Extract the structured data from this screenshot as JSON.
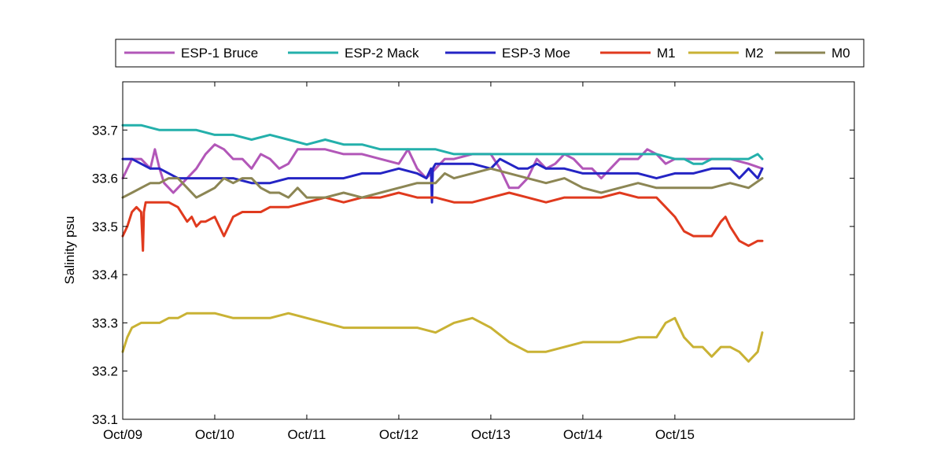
{
  "chart_data": {
    "type": "line",
    "title": "",
    "xlabel": "",
    "ylabel": "Salinity psu",
    "xlim": [
      0,
      7.95
    ],
    "ylim": [
      33.1,
      33.8
    ],
    "x_ticks": [
      0,
      1,
      2,
      3,
      4,
      5,
      6
    ],
    "x_tick_labels": [
      "Oct/09",
      "Oct/10",
      "Oct/11",
      "Oct/12",
      "Oct/13",
      "Oct/14",
      "Oct/15"
    ],
    "y_ticks": [
      33.1,
      33.2,
      33.3,
      33.4,
      33.5,
      33.6,
      33.7
    ],
    "y_tick_labels": [
      "33.1",
      "33.2",
      "33.3",
      "33.4",
      "33.5",
      "33.6",
      "33.7"
    ],
    "grid": false,
    "legend_position": "top, outside plot, single row",
    "series": [
      {
        "name": "ESP-1 Bruce",
        "color": "#b257b8",
        "x": [
          0.0,
          0.1,
          0.2,
          0.3,
          0.35,
          0.4,
          0.45,
          0.5,
          0.55,
          0.6,
          0.7,
          0.8,
          0.9,
          1.0,
          1.1,
          1.2,
          1.3,
          1.4,
          1.5,
          1.6,
          1.7,
          1.8,
          1.9,
          2.0,
          2.2,
          2.4,
          2.6,
          2.8,
          3.0,
          3.1,
          3.2,
          3.3,
          3.4,
          3.5,
          3.6,
          3.8,
          4.0,
          4.1,
          4.2,
          4.3,
          4.4,
          4.5,
          4.6,
          4.7,
          4.8,
          4.9,
          5.0,
          5.1,
          5.2,
          5.3,
          5.4,
          5.5,
          5.6,
          5.7,
          5.8,
          5.9,
          6.0,
          6.2,
          6.4,
          6.6,
          6.8,
          6.95
        ],
        "values": [
          33.6,
          33.64,
          33.64,
          33.62,
          33.66,
          33.62,
          33.59,
          33.58,
          33.57,
          33.58,
          33.6,
          33.62,
          33.65,
          33.67,
          33.66,
          33.64,
          33.64,
          33.62,
          33.65,
          33.64,
          33.62,
          33.63,
          33.66,
          33.66,
          33.66,
          33.65,
          33.65,
          33.64,
          33.63,
          33.66,
          33.62,
          33.6,
          33.62,
          33.64,
          33.64,
          33.65,
          33.65,
          33.62,
          33.58,
          33.58,
          33.6,
          33.64,
          33.62,
          33.63,
          33.65,
          33.64,
          33.62,
          33.62,
          33.6,
          33.62,
          33.64,
          33.64,
          33.64,
          33.66,
          33.65,
          33.63,
          33.64,
          33.64,
          33.64,
          33.64,
          33.63,
          33.62
        ]
      },
      {
        "name": "ESP-2 Mack",
        "color": "#24b0ab",
        "x": [
          0.0,
          0.2,
          0.4,
          0.6,
          0.8,
          1.0,
          1.2,
          1.4,
          1.6,
          1.8,
          2.0,
          2.2,
          2.4,
          2.6,
          2.8,
          3.0,
          3.2,
          3.4,
          3.6,
          3.8,
          4.0,
          4.2,
          4.4,
          4.6,
          4.8,
          5.0,
          5.2,
          5.4,
          5.6,
          5.8,
          6.0,
          6.1,
          6.2,
          6.3,
          6.4,
          6.5,
          6.6,
          6.7,
          6.8,
          6.9,
          6.95
        ],
        "values": [
          33.71,
          33.71,
          33.7,
          33.7,
          33.7,
          33.69,
          33.69,
          33.68,
          33.69,
          33.68,
          33.67,
          33.68,
          33.67,
          33.67,
          33.66,
          33.66,
          33.66,
          33.66,
          33.65,
          33.65,
          33.65,
          33.65,
          33.65,
          33.65,
          33.65,
          33.65,
          33.65,
          33.65,
          33.65,
          33.65,
          33.64,
          33.64,
          33.63,
          33.63,
          33.64,
          33.64,
          33.64,
          33.64,
          33.64,
          33.65,
          33.64
        ]
      },
      {
        "name": "ESP-3 Moe",
        "color": "#2424c4",
        "x": [
          0.0,
          0.1,
          0.2,
          0.3,
          0.4,
          0.5,
          0.6,
          0.8,
          1.0,
          1.2,
          1.4,
          1.6,
          1.8,
          2.0,
          2.2,
          2.4,
          2.6,
          2.8,
          3.0,
          3.2,
          3.3,
          3.35,
          3.36,
          3.37,
          3.4,
          3.5,
          3.6,
          3.8,
          4.0,
          4.1,
          4.2,
          4.3,
          4.4,
          4.5,
          4.6,
          4.8,
          5.0,
          5.2,
          5.4,
          5.6,
          5.8,
          6.0,
          6.2,
          6.4,
          6.5,
          6.6,
          6.7,
          6.8,
          6.9,
          6.95
        ],
        "values": [
          33.64,
          33.64,
          33.63,
          33.62,
          33.62,
          33.61,
          33.6,
          33.6,
          33.6,
          33.6,
          33.59,
          33.59,
          33.6,
          33.6,
          33.6,
          33.6,
          33.61,
          33.61,
          33.62,
          33.61,
          33.6,
          33.62,
          33.55,
          33.62,
          33.63,
          33.63,
          33.63,
          33.63,
          33.62,
          33.64,
          33.63,
          33.62,
          33.62,
          33.63,
          33.62,
          33.62,
          33.61,
          33.61,
          33.61,
          33.61,
          33.6,
          33.61,
          33.61,
          33.62,
          33.62,
          33.62,
          33.6,
          33.62,
          33.6,
          33.62
        ]
      },
      {
        "name": "M1",
        "color": "#e03a1e",
        "x": [
          0.0,
          0.05,
          0.1,
          0.15,
          0.2,
          0.22,
          0.23,
          0.25,
          0.3,
          0.4,
          0.5,
          0.6,
          0.7,
          0.75,
          0.8,
          0.85,
          0.9,
          1.0,
          1.05,
          1.1,
          1.2,
          1.3,
          1.4,
          1.5,
          1.6,
          1.8,
          2.0,
          2.2,
          2.4,
          2.6,
          2.8,
          3.0,
          3.2,
          3.4,
          3.6,
          3.8,
          4.0,
          4.2,
          4.4,
          4.6,
          4.8,
          5.0,
          5.2,
          5.4,
          5.6,
          5.8,
          5.9,
          6.0,
          6.1,
          6.2,
          6.3,
          6.4,
          6.5,
          6.55,
          6.6,
          6.7,
          6.8,
          6.9,
          6.95
        ],
        "values": [
          33.48,
          33.5,
          33.53,
          33.54,
          33.53,
          33.45,
          33.53,
          33.55,
          33.55,
          33.55,
          33.55,
          33.54,
          33.51,
          33.52,
          33.5,
          33.51,
          33.51,
          33.52,
          33.5,
          33.48,
          33.52,
          33.53,
          33.53,
          33.53,
          33.54,
          33.54,
          33.55,
          33.56,
          33.55,
          33.56,
          33.56,
          33.57,
          33.56,
          33.56,
          33.55,
          33.55,
          33.56,
          33.57,
          33.56,
          33.55,
          33.56,
          33.56,
          33.56,
          33.57,
          33.56,
          33.56,
          33.54,
          33.52,
          33.49,
          33.48,
          33.48,
          33.48,
          33.51,
          33.52,
          33.5,
          33.47,
          33.46,
          33.47,
          33.47
        ]
      },
      {
        "name": "M2",
        "color": "#c9b234",
        "x": [
          0.0,
          0.05,
          0.1,
          0.2,
          0.3,
          0.4,
          0.5,
          0.6,
          0.7,
          0.8,
          0.9,
          1.0,
          1.2,
          1.4,
          1.6,
          1.8,
          2.0,
          2.2,
          2.4,
          2.6,
          2.8,
          3.0,
          3.2,
          3.4,
          3.6,
          3.8,
          4.0,
          4.2,
          4.4,
          4.6,
          4.8,
          5.0,
          5.2,
          5.4,
          5.6,
          5.8,
          5.9,
          6.0,
          6.05,
          6.1,
          6.2,
          6.3,
          6.4,
          6.5,
          6.6,
          6.7,
          6.8,
          6.9,
          6.95
        ],
        "values": [
          33.24,
          33.27,
          33.29,
          33.3,
          33.3,
          33.3,
          33.31,
          33.31,
          33.32,
          33.32,
          33.32,
          33.32,
          33.31,
          33.31,
          33.31,
          33.32,
          33.31,
          33.3,
          33.29,
          33.29,
          33.29,
          33.29,
          33.29,
          33.28,
          33.3,
          33.31,
          33.29,
          33.26,
          33.24,
          33.24,
          33.25,
          33.26,
          33.26,
          33.26,
          33.27,
          33.27,
          33.3,
          33.31,
          33.29,
          33.27,
          33.25,
          33.25,
          33.23,
          33.25,
          33.25,
          33.24,
          33.22,
          33.24,
          33.28
        ]
      },
      {
        "name": "M0",
        "color": "#8c8654",
        "x": [
          0.0,
          0.1,
          0.2,
          0.3,
          0.4,
          0.5,
          0.6,
          0.7,
          0.8,
          0.9,
          1.0,
          1.1,
          1.2,
          1.3,
          1.4,
          1.5,
          1.6,
          1.7,
          1.8,
          1.9,
          2.0,
          2.2,
          2.4,
          2.6,
          2.8,
          3.0,
          3.2,
          3.4,
          3.5,
          3.6,
          3.8,
          4.0,
          4.2,
          4.4,
          4.6,
          4.8,
          5.0,
          5.2,
          5.4,
          5.6,
          5.8,
          6.0,
          6.2,
          6.4,
          6.6,
          6.8,
          6.95
        ],
        "values": [
          33.56,
          33.57,
          33.58,
          33.59,
          33.59,
          33.6,
          33.6,
          33.58,
          33.56,
          33.57,
          33.58,
          33.6,
          33.59,
          33.6,
          33.6,
          33.58,
          33.57,
          33.57,
          33.56,
          33.58,
          33.56,
          33.56,
          33.57,
          33.56,
          33.57,
          33.58,
          33.59,
          33.59,
          33.61,
          33.6,
          33.61,
          33.62,
          33.61,
          33.6,
          33.59,
          33.6,
          33.58,
          33.57,
          33.58,
          33.59,
          33.58,
          33.58,
          33.58,
          33.58,
          33.59,
          33.58,
          33.6
        ]
      }
    ]
  }
}
